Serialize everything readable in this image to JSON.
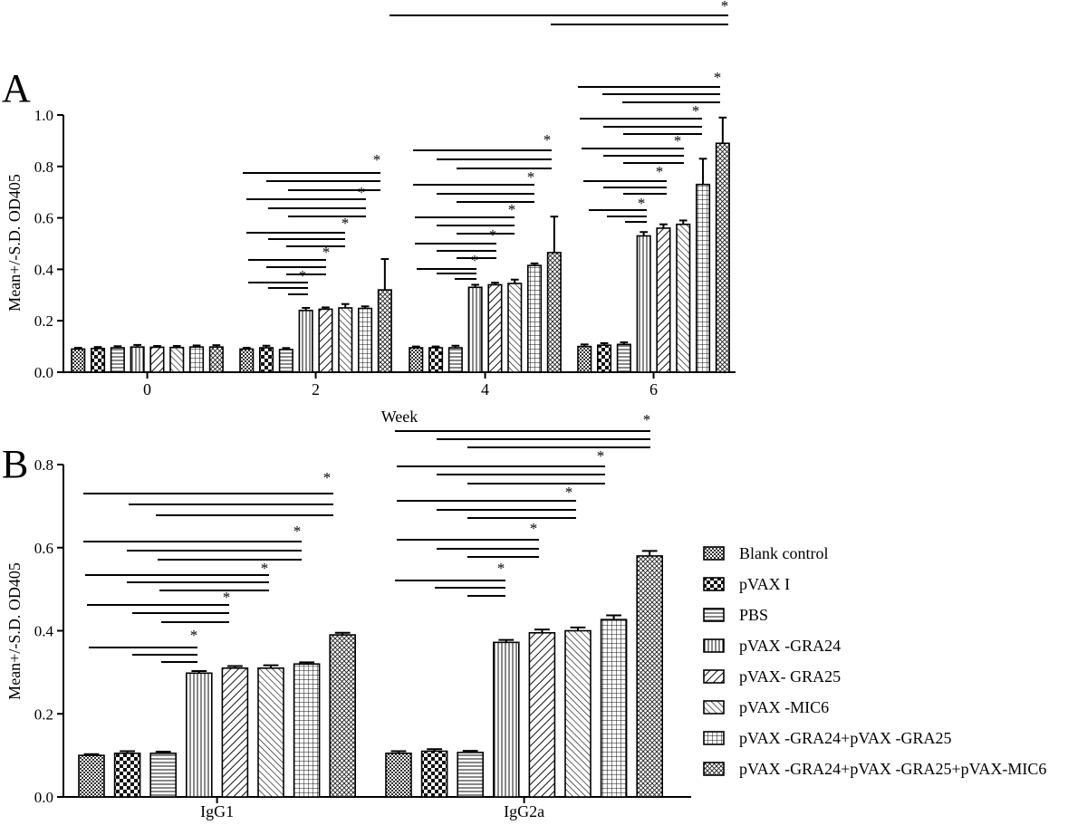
{
  "chart_data": [
    {
      "panel": "A",
      "type": "bar",
      "ylabel": "Mean+/-S.D. OD405",
      "xlabel": "Week",
      "ylim": [
        0,
        1.0
      ],
      "yticks": [
        "0.0",
        "0.2",
        "0.4",
        "0.6",
        "0.8",
        "1.0"
      ],
      "categories": [
        "0",
        "2",
        "4",
        "6"
      ],
      "series": [
        {
          "name": "Blank control",
          "values": [
            0.09,
            0.09,
            0.095,
            0.1
          ],
          "errors": [
            0.005,
            0.005,
            0.005,
            0.008
          ]
        },
        {
          "name": "pVAX I",
          "values": [
            0.092,
            0.095,
            0.095,
            0.105
          ],
          "errors": [
            0.006,
            0.008,
            0.005,
            0.008
          ]
        },
        {
          "name": "PBS",
          "values": [
            0.095,
            0.088,
            0.095,
            0.108
          ],
          "errors": [
            0.006,
            0.006,
            0.008,
            0.008
          ]
        },
        {
          "name": "pVAX -GRA24",
          "values": [
            0.098,
            0.24,
            0.33,
            0.53
          ],
          "errors": [
            0.008,
            0.01,
            0.01,
            0.015
          ]
        },
        {
          "name": "pVAX- GRA25",
          "values": [
            0.097,
            0.245,
            0.34,
            0.56
          ],
          "errors": [
            0.005,
            0.007,
            0.008,
            0.015
          ]
        },
        {
          "name": "pVAX -MIC6",
          "values": [
            0.096,
            0.25,
            0.345,
            0.575
          ],
          "errors": [
            0.006,
            0.015,
            0.015,
            0.015
          ]
        },
        {
          "name": "pVAX -GRA24+pVAX -GRA25",
          "values": [
            0.098,
            0.248,
            0.415,
            0.73
          ],
          "errors": [
            0.006,
            0.008,
            0.008,
            0.1
          ]
        },
        {
          "name": "pVAX -GRA24+pVAX -GRA25+pVAX-MIC6",
          "values": [
            0.098,
            0.32,
            0.465,
            0.89
          ],
          "errors": [
            0.007,
            0.12,
            0.14,
            0.1
          ]
        }
      ],
      "significance_label": "*"
    },
    {
      "panel": "B",
      "type": "bar",
      "ylabel": "Mean+/-S.D. OD405",
      "xlabel": "",
      "ylim": [
        0,
        0.8
      ],
      "yticks": [
        "0.0",
        "0.2",
        "0.4",
        "0.6",
        "0.8"
      ],
      "categories": [
        "IgG1",
        "IgG2a"
      ],
      "series": [
        {
          "name": "Blank control",
          "values": [
            0.1,
            0.105
          ],
          "errors": [
            0.003,
            0.005
          ]
        },
        {
          "name": "pVAX I",
          "values": [
            0.105,
            0.11
          ],
          "errors": [
            0.005,
            0.005
          ]
        },
        {
          "name": "PBS",
          "values": [
            0.105,
            0.107
          ],
          "errors": [
            0.004,
            0.004
          ]
        },
        {
          "name": "pVAX -GRA24",
          "values": [
            0.298,
            0.372
          ],
          "errors": [
            0.005,
            0.006
          ]
        },
        {
          "name": "pVAX- GRA25",
          "values": [
            0.31,
            0.395
          ],
          "errors": [
            0.005,
            0.008
          ]
        },
        {
          "name": "pVAX -MIC6",
          "values": [
            0.31,
            0.4
          ],
          "errors": [
            0.007,
            0.008
          ]
        },
        {
          "name": "pVAX -GRA24+pVAX -GRA25",
          "values": [
            0.32,
            0.427
          ],
          "errors": [
            0.004,
            0.01
          ]
        },
        {
          "name": "pVAX -GRA24+pVAX -GRA25+pVAX-MIC6",
          "values": [
            0.39,
            0.58
          ],
          "errors": [
            0.005,
            0.012
          ]
        }
      ],
      "significance_label": "*"
    }
  ],
  "panel_labels": {
    "a": "A",
    "b": "B"
  },
  "legend": [
    {
      "label": "Blank control",
      "pattern": "dense-check"
    },
    {
      "label": "pVAX I",
      "pattern": "checker"
    },
    {
      "label": "PBS",
      "pattern": "horizontal"
    },
    {
      "label": "pVAX -GRA24",
      "pattern": "vertical"
    },
    {
      "label": "pVAX- GRA25",
      "pattern": "diag-right"
    },
    {
      "label": "pVAX -MIC6",
      "pattern": "diag-left"
    },
    {
      "label": "pVAX -GRA24+pVAX -GRA25",
      "pattern": "grid"
    },
    {
      "label": "pVAX -GRA24+pVAX -GRA25+pVAX-MIC6",
      "pattern": "diag-cross"
    }
  ]
}
